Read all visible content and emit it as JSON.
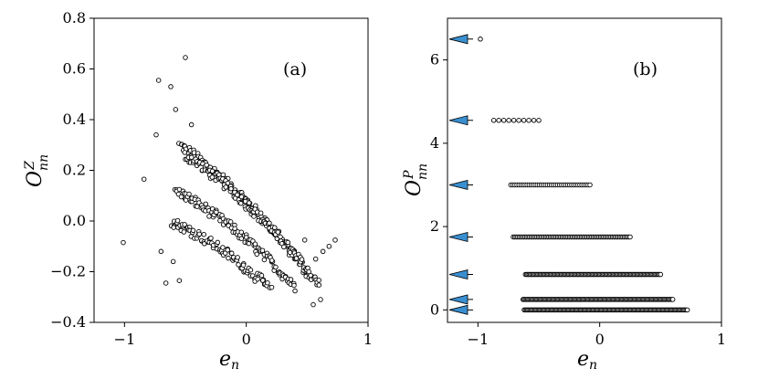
{
  "chart_data": [
    {
      "type": "scatter",
      "panel_label": "(a)",
      "xlabel": "e",
      "xlabel_sub": "n",
      "ylabel": "O",
      "ylabel_sub": "nn",
      "ylabel_sup": "Z",
      "xlim": [
        -1.25,
        1.0
      ],
      "ylim": [
        -0.4,
        0.8
      ],
      "xticks": [
        -1,
        0,
        1
      ],
      "xtick_labels": [
        "−1",
        "0",
        "1"
      ],
      "yticks": [
        -0.4,
        -0.2,
        0.0,
        0.2,
        0.4,
        0.6,
        0.8
      ],
      "ytick_labels": [
        "−0.4",
        "−0.2",
        "0.0",
        "0.2",
        "0.4",
        "0.6",
        "0.8"
      ],
      "marker": "open circle",
      "points": [
        {
          "x": -1.01,
          "y": -0.085
        },
        {
          "x": -0.84,
          "y": 0.165
        },
        {
          "x": -0.72,
          "y": 0.555
        },
        {
          "x": -0.74,
          "y": 0.34
        },
        {
          "x": -0.7,
          "y": -0.12
        },
        {
          "x": -0.66,
          "y": -0.245
        },
        {
          "x": -0.62,
          "y": 0.53
        },
        {
          "x": -0.5,
          "y": 0.645
        },
        {
          "x": -0.6,
          "y": -0.16
        },
        {
          "x": -0.58,
          "y": 0.44
        },
        {
          "x": -0.55,
          "y": -0.235
        },
        {
          "x": -0.45,
          "y": 0.38
        },
        {
          "x": 0.73,
          "y": -0.075
        },
        {
          "x": 0.68,
          "y": -0.1
        },
        {
          "x": 0.63,
          "y": -0.12
        },
        {
          "x": 0.48,
          "y": -0.075
        },
        {
          "x": 0.57,
          "y": -0.15
        },
        {
          "x": 0.55,
          "y": -0.33
        },
        {
          "x": 0.61,
          "y": -0.31
        }
      ],
      "bands": [
        {
          "x_start": -0.55,
          "x_end": 0.55,
          "y_start": 0.3,
          "y_end": -0.24,
          "curvature": 0.12,
          "points": 130
        },
        {
          "x_start": -0.5,
          "x_end": 0.6,
          "y_start": 0.26,
          "y_end": -0.25,
          "curvature": 0.1,
          "points": 130
        },
        {
          "x_start": -0.58,
          "x_end": 0.4,
          "y_start": 0.12,
          "y_end": -0.26,
          "curvature": 0.08,
          "points": 110
        },
        {
          "x_start": -0.62,
          "x_end": 0.2,
          "y_start": 0.0,
          "y_end": -0.27,
          "curvature": 0.06,
          "points": 90
        }
      ]
    },
    {
      "type": "scatter",
      "panel_label": "(b)",
      "xlabel": "e",
      "xlabel_sub": "n",
      "ylabel": "O",
      "ylabel_sub": "nn",
      "ylabel_sup": "P",
      "xlim": [
        -1.25,
        1.0
      ],
      "ylim": [
        -0.3,
        7.0
      ],
      "xticks": [
        -1,
        0,
        1
      ],
      "xtick_labels": [
        "−1",
        "0",
        "1"
      ],
      "yticks": [
        0,
        2,
        4,
        6
      ],
      "ytick_labels": [
        "0",
        "2",
        "4",
        "6"
      ],
      "marker": "open circle",
      "levels": [
        {
          "y": 6.5,
          "x_min": -0.98,
          "x_max": -0.98,
          "count": 1
        },
        {
          "y": 4.55,
          "x_min": -0.87,
          "x_max": -0.5,
          "count": 10
        },
        {
          "y": 3.0,
          "x_min": -0.73,
          "x_max": -0.08,
          "count": 40
        },
        {
          "y": 1.75,
          "x_min": -0.71,
          "x_max": 0.25,
          "count": 80
        },
        {
          "y": 0.85,
          "x_min": -0.61,
          "x_max": 0.5,
          "count": 110
        },
        {
          "y": 0.25,
          "x_min": -0.63,
          "x_max": 0.6,
          "count": 130
        },
        {
          "y": 0.0,
          "x_min": -0.62,
          "x_max": 0.72,
          "count": 140
        }
      ],
      "arrow_color": "#3a8fd0",
      "arrow_levels": [
        6.5,
        4.55,
        3.0,
        1.75,
        0.85,
        0.25,
        0.0
      ]
    }
  ]
}
